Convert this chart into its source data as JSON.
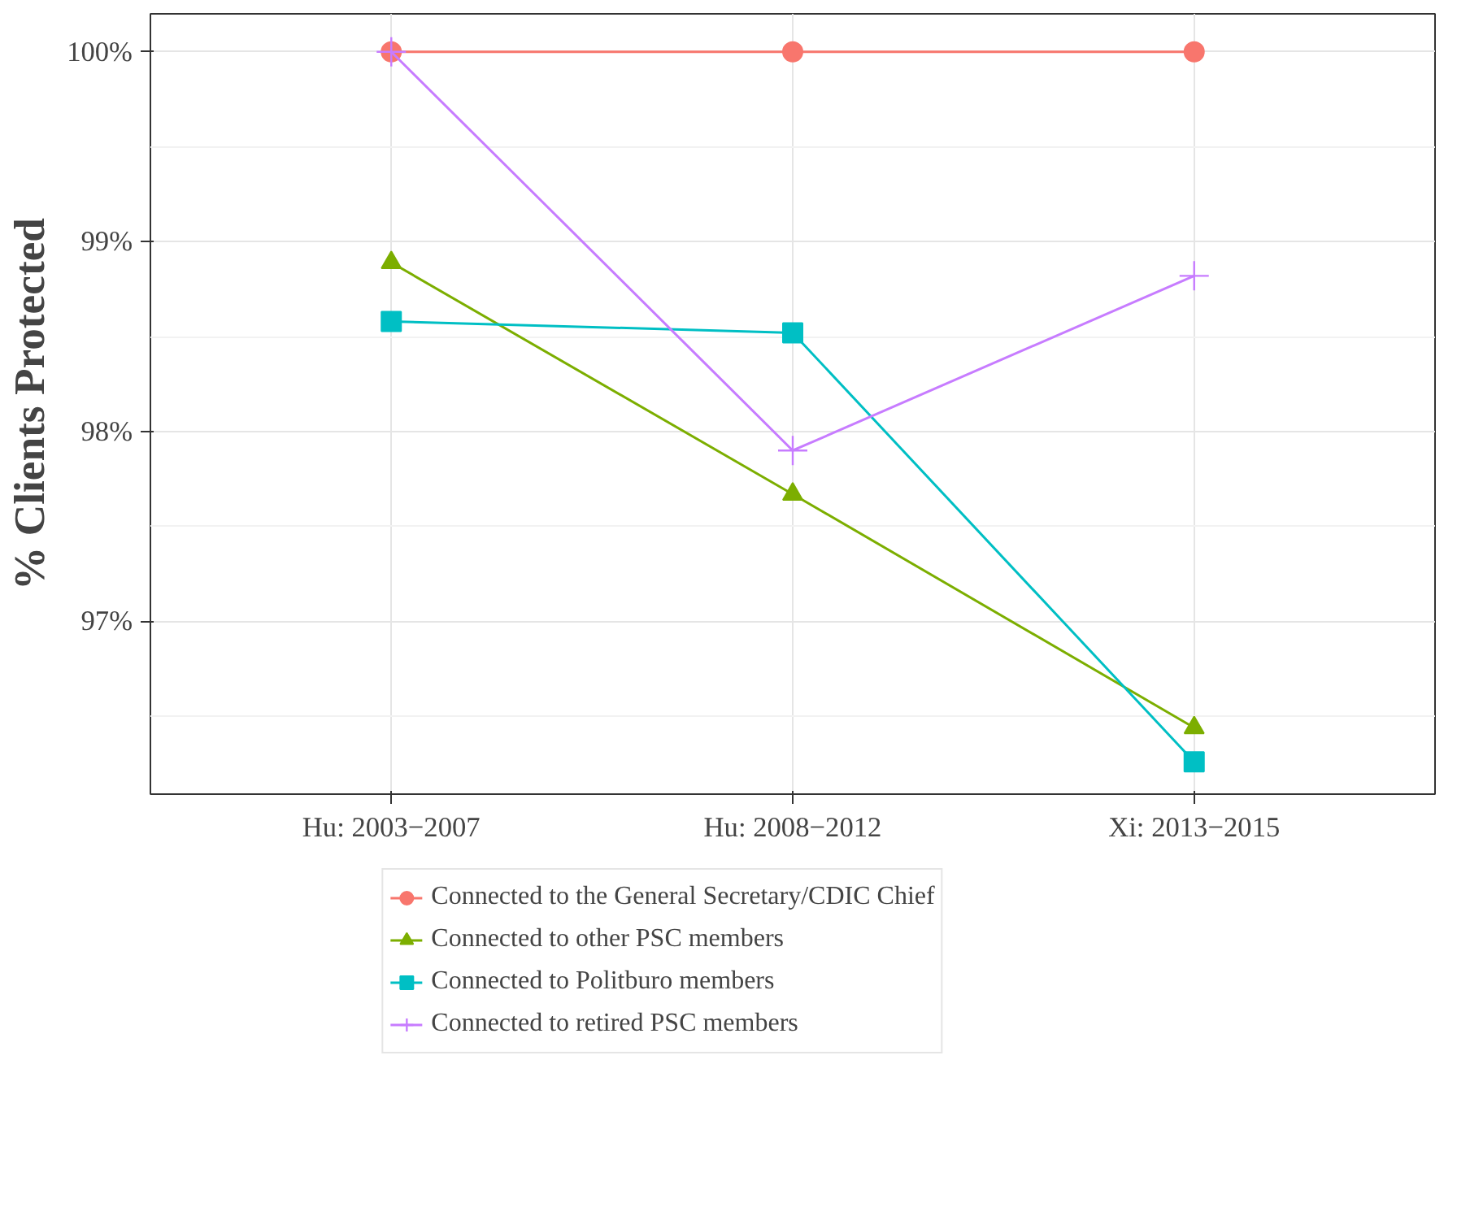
{
  "chart_data": {
    "type": "line",
    "ylabel": "% Clients Protected",
    "categories": [
      "Hu: 2003−2007",
      "Hu: 2008−2012",
      "Xi: 2013−2015"
    ],
    "ylim": [
      96.09,
      100.2
    ],
    "yticks": [
      {
        "value": 97,
        "label": "97%"
      },
      {
        "value": 98,
        "label": "98%"
      },
      {
        "value": 99,
        "label": "99%"
      },
      {
        "value": 100,
        "label": "100%"
      }
    ],
    "grid": true,
    "legend": "bottom",
    "line_style": "solid",
    "series": [
      {
        "name": "Connected to the General Secretary/CDIC Chief",
        "color": "#f8766d",
        "marker": "circle",
        "values": [
          100,
          100,
          100
        ]
      },
      {
        "name": "Connected to other PSC members",
        "color": "#7cae00",
        "marker": "triangle",
        "values": [
          98.89,
          97.67,
          96.44
        ]
      },
      {
        "name": "Connected to Politburo members",
        "color": "#00bfc4",
        "marker": "square",
        "values": [
          98.58,
          98.52,
          96.26
        ]
      },
      {
        "name": "Connected to retired PSC members",
        "color": "#c77cff",
        "marker": "cross",
        "values": [
          100,
          97.9,
          98.82
        ]
      }
    ]
  }
}
